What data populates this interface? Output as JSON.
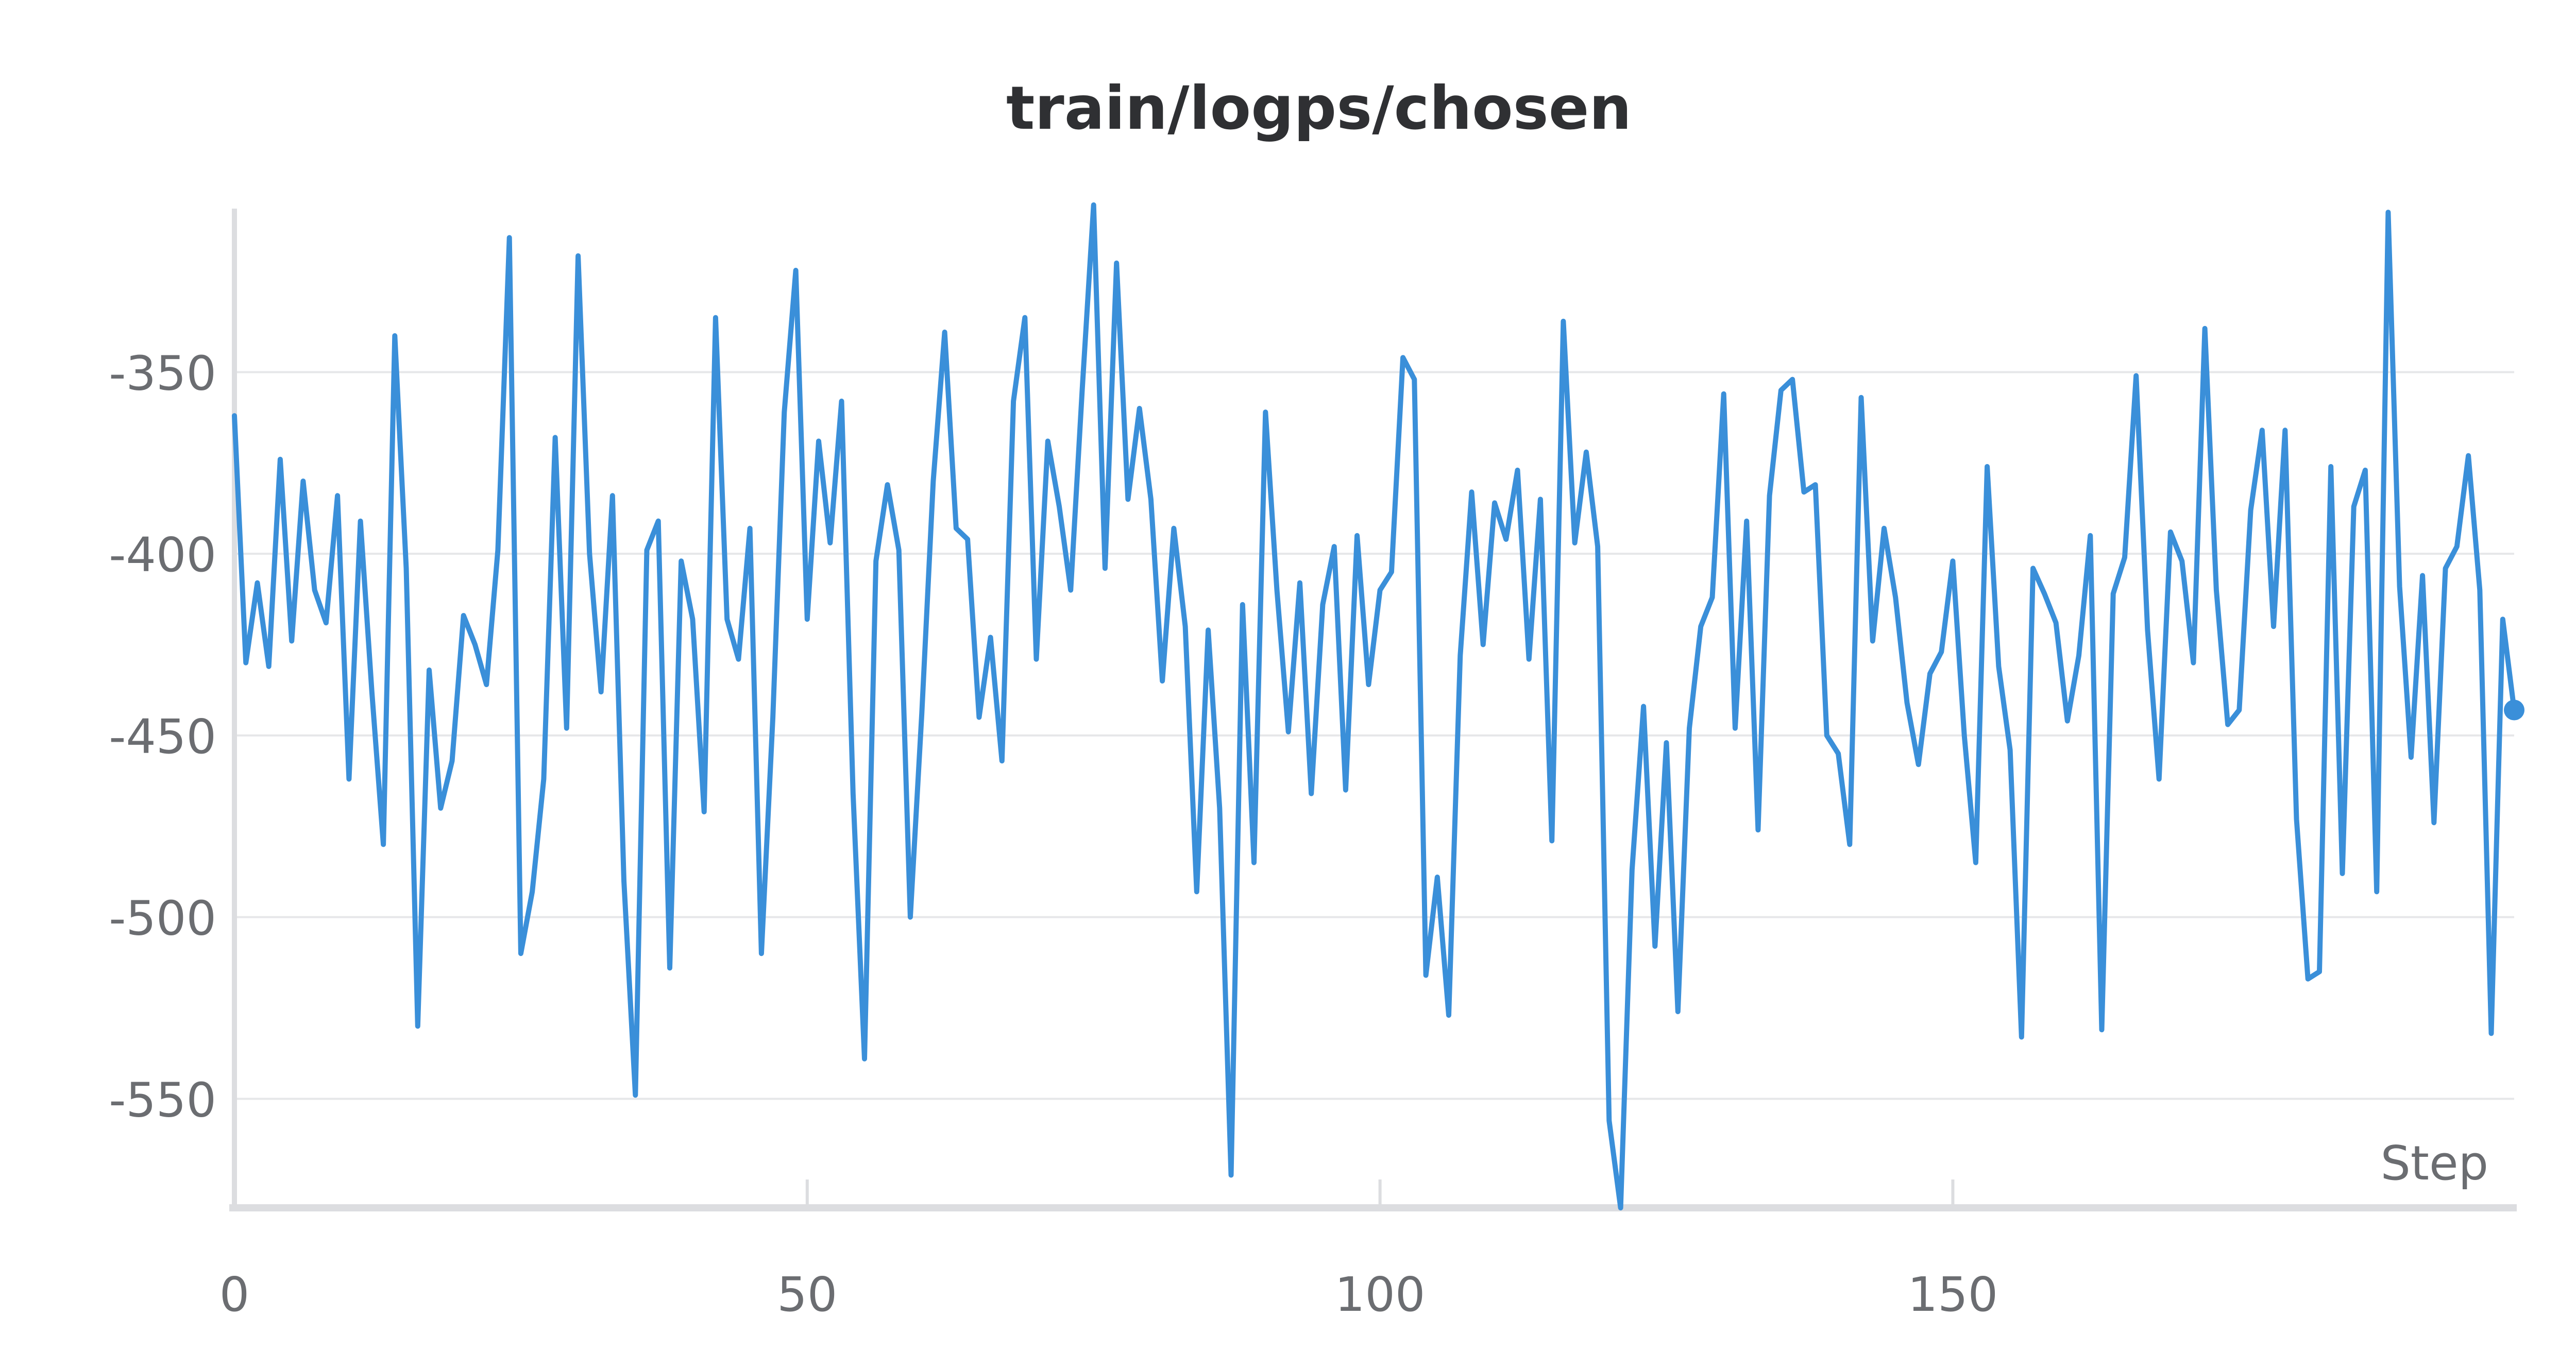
{
  "chart_data": {
    "type": "line",
    "title": "train/logps/chosen",
    "xlabel": "Step",
    "ylabel": "",
    "xlim": [
      0,
      199
    ],
    "ylim": [
      -580,
      -305
    ],
    "x_ticks": [
      0,
      50,
      100,
      150
    ],
    "y_ticks": [
      -350,
      -400,
      -450,
      -500,
      -550
    ],
    "grid": "horizontal",
    "line_color": "#3a8fd9",
    "series": [
      {
        "x": [
          0,
          1,
          2,
          3,
          4,
          5,
          6,
          7,
          8,
          9,
          10,
          11,
          12,
          13,
          14,
          15,
          16,
          17,
          18,
          19,
          20,
          21,
          22,
          23,
          24,
          25,
          26,
          27,
          28,
          29,
          30,
          31,
          32,
          33,
          34,
          35,
          36,
          37,
          38,
          39,
          40,
          41,
          42,
          43,
          44,
          45,
          46,
          47,
          48,
          49,
          50,
          51,
          52,
          53,
          54,
          55,
          56,
          57,
          58,
          59,
          60,
          61,
          62,
          63,
          64,
          65,
          66,
          67,
          68,
          69,
          70,
          71,
          72,
          73,
          74,
          75,
          76,
          77,
          78,
          79,
          80,
          81,
          82,
          83,
          84,
          85,
          86,
          87,
          88,
          89,
          90,
          91,
          92,
          93,
          94,
          95,
          96,
          97,
          98,
          99,
          100,
          101,
          102,
          103,
          104,
          105,
          106,
          107,
          108,
          109,
          110,
          111,
          112,
          113,
          114,
          115,
          116,
          117,
          118,
          119,
          120,
          121,
          122,
          123,
          124,
          125,
          126,
          127,
          128,
          129,
          130,
          131,
          132,
          133,
          134,
          135,
          136,
          137,
          138,
          139,
          140,
          141,
          142,
          143,
          144,
          145,
          146,
          147,
          148,
          149,
          150,
          151,
          152,
          153,
          154,
          155,
          156,
          157,
          158,
          159,
          160,
          161,
          162,
          163,
          164,
          165,
          166,
          167,
          168,
          169,
          170,
          171,
          172,
          173,
          174,
          175,
          176,
          177,
          178,
          179,
          180,
          181,
          182,
          183,
          184,
          185,
          186,
          187,
          188,
          189,
          190,
          191,
          192,
          193,
          194,
          195,
          196,
          197,
          198,
          199
        ],
        "y": [
          -362,
          -430,
          -408,
          -431,
          -374,
          -424,
          -380,
          -410,
          -419,
          -384,
          -462,
          -391,
          -438,
          -480,
          -340,
          -404,
          -530,
          -432,
          -470,
          -457,
          -417,
          -425,
          -436,
          -399,
          -313,
          -510,
          -493,
          -462,
          -368,
          -448,
          -318,
          -400,
          -438,
          -384,
          -490,
          -549,
          -399,
          -391,
          -514,
          -402,
          -418,
          -471,
          -335,
          -418,
          -429,
          -393,
          -510,
          -445,
          -361,
          -322,
          -418,
          -369,
          -397,
          -358,
          -466,
          -539,
          -402,
          -381,
          -399,
          -500,
          -444,
          -380,
          -339,
          -393,
          -396,
          -445,
          -423,
          -457,
          -358,
          -335,
          -429,
          -369,
          -387,
          -410,
          -355,
          -304,
          -404,
          -320,
          -385,
          -360,
          -385,
          -435,
          -393,
          -420,
          -493,
          -421,
          -470,
          -571,
          -414,
          -485,
          -361,
          -410,
          -449,
          -408,
          -466,
          -414,
          -398,
          -465,
          -395,
          -436,
          -410,
          -405,
          -346,
          -352,
          -516,
          -489,
          -527,
          -428,
          -383,
          -425,
          -386,
          -396,
          -377,
          -429,
          -385,
          -479,
          -336,
          -397,
          -372,
          -398,
          -556,
          -580,
          -487,
          -442,
          -508,
          -452,
          -526,
          -448,
          -420,
          -412,
          -356,
          -448,
          -391,
          -476,
          -384,
          -355,
          -352,
          -383,
          -381,
          -450,
          -455,
          -480,
          -357,
          -424,
          -393,
          -412,
          -441,
          -458,
          -433,
          -427,
          -402,
          -450,
          -485,
          -376,
          -431,
          -454,
          -533,
          -404,
          -411,
          -419,
          -446,
          -428,
          -395,
          -531,
          -411,
          -401,
          -351,
          -421,
          -462,
          -394,
          -402,
          -430,
          -338,
          -410,
          -447,
          -443,
          -388,
          -366,
          -420,
          -366,
          -473,
          -517,
          -515,
          -376,
          -488,
          -387,
          -377,
          -493,
          -306,
          -409,
          -456,
          -406,
          -474,
          -404,
          -398,
          -373,
          -410,
          -532,
          -418,
          -443
        ]
      }
    ]
  }
}
